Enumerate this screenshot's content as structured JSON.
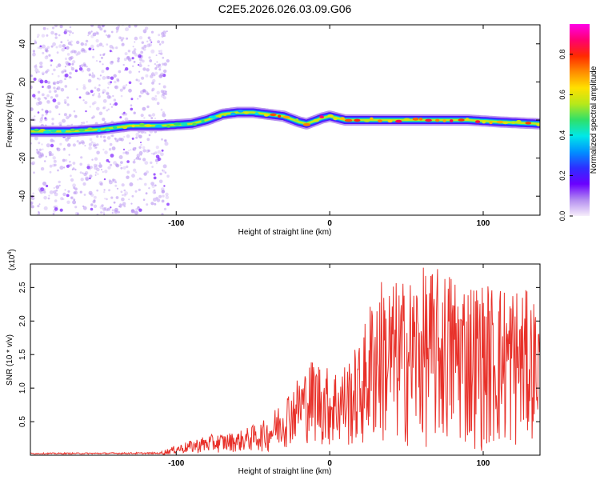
{
  "title": "C2E5.2026.026.03.09.G06",
  "chart_data": [
    {
      "type": "heatmap",
      "panel": "spectrogram",
      "xlabel": "Height of straight line (km)",
      "ylabel": "Frequency (Hz)",
      "xlim": [
        -195,
        137
      ],
      "ylim": [
        -50,
        50
      ],
      "xticks": [
        -100,
        0,
        100
      ],
      "xtick_labels": [
        "-100",
        "0",
        "100"
      ],
      "yticks": [
        -40,
        -20,
        0,
        20,
        40
      ],
      "ytick_labels": [
        "-40",
        "-20",
        "0",
        "20",
        "40"
      ],
      "ridge_points": [
        {
          "x": -195,
          "f": -6
        },
        {
          "x": -170,
          "f": -6
        },
        {
          "x": -150,
          "f": -5
        },
        {
          "x": -130,
          "f": -3
        },
        {
          "x": -110,
          "f": -3
        },
        {
          "x": -90,
          "f": -2
        },
        {
          "x": -80,
          "f": 0
        },
        {
          "x": -70,
          "f": 3
        },
        {
          "x": -60,
          "f": 4
        },
        {
          "x": -50,
          "f": 4
        },
        {
          "x": -40,
          "f": 3
        },
        {
          "x": -30,
          "f": 2
        },
        {
          "x": -20,
          "f": -1
        },
        {
          "x": -15,
          "f": -2
        },
        {
          "x": -5,
          "f": 1
        },
        {
          "x": 0,
          "f": 2
        },
        {
          "x": 10,
          "f": 0
        },
        {
          "x": 30,
          "f": 0
        },
        {
          "x": 60,
          "f": 0
        },
        {
          "x": 90,
          "f": 0
        },
        {
          "x": 110,
          "f": -1
        },
        {
          "x": 137,
          "f": -2
        }
      ],
      "colorbar": {
        "label": "Normalized spectral amplitude",
        "range": [
          0,
          0.95
        ],
        "ticks": [
          0.0,
          0.2,
          0.4,
          0.6,
          0.8
        ],
        "tick_labels": [
          "0.0",
          "0.2",
          "0.4",
          "0.6",
          "0.8"
        ],
        "colors": [
          "#f7eefb",
          "#b48ef0",
          "#6a00ff",
          "#2e2eff",
          "#0090ff",
          "#00e8e8",
          "#2ee06a",
          "#b6e81a",
          "#ffe000",
          "#ff8c00",
          "#ff2a00",
          "#ff0070",
          "#ff00e8"
        ]
      }
    },
    {
      "type": "line",
      "panel": "snr",
      "xlabel": "Height of straight line (km)",
      "ylabel": "SNR (10 * v/v)",
      "multiplier_label": "(x10",
      "multiplier_exp": "4",
      "xlim": [
        -195,
        137
      ],
      "ylim": [
        0,
        2.85
      ],
      "xticks": [
        -100,
        0,
        100
      ],
      "xtick_labels": [
        "-100",
        "0",
        "100"
      ],
      "yticks": [
        0.5,
        1.0,
        1.5,
        2.0,
        2.5
      ],
      "ytick_labels": [
        "0.5",
        "1.0",
        "1.5",
        "2.0",
        "2.5"
      ],
      "series": [
        {
          "name": "SNR",
          "color": "#e8312a",
          "envelope": [
            {
              "x": -195,
              "lo": 0.0,
              "hi": 0.05
            },
            {
              "x": -110,
              "lo": 0.0,
              "hi": 0.06
            },
            {
              "x": -100,
              "lo": 0.02,
              "hi": 0.15
            },
            {
              "x": -80,
              "lo": 0.03,
              "hi": 0.3
            },
            {
              "x": -60,
              "lo": 0.05,
              "hi": 0.35
            },
            {
              "x": -40,
              "lo": 0.05,
              "hi": 0.55
            },
            {
              "x": -30,
              "lo": 0.1,
              "hi": 0.9
            },
            {
              "x": -20,
              "lo": 0.2,
              "hi": 1.2
            },
            {
              "x": -10,
              "lo": 0.15,
              "hi": 1.5
            },
            {
              "x": 0,
              "lo": 0.1,
              "hi": 1.3
            },
            {
              "x": 10,
              "lo": 0.1,
              "hi": 1.4
            },
            {
              "x": 20,
              "lo": 0.1,
              "hi": 1.7
            },
            {
              "x": 30,
              "lo": 0.1,
              "hi": 2.7
            },
            {
              "x": 45,
              "lo": 0.1,
              "hi": 2.6
            },
            {
              "x": 60,
              "lo": 0.1,
              "hi": 2.8
            },
            {
              "x": 80,
              "lo": 0.1,
              "hi": 2.8
            },
            {
              "x": 100,
              "lo": 0.05,
              "hi": 2.6
            },
            {
              "x": 120,
              "lo": 0.05,
              "hi": 2.6
            },
            {
              "x": 137,
              "lo": 0.3,
              "hi": 2.3
            }
          ]
        }
      ]
    }
  ]
}
